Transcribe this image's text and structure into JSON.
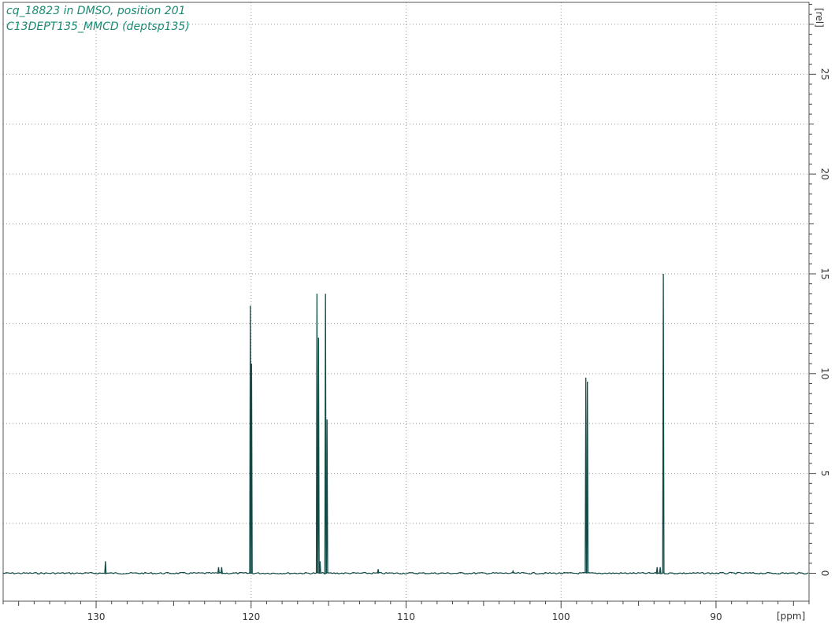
{
  "header": {
    "line1": "cq_18823 in DMSO, position 201",
    "line2": "C13DEPT135_MMCD (deptsp135)"
  },
  "colors": {
    "spectrum": "#0f4a45",
    "title": "#1a8a72",
    "grid": "#9a9a9a",
    "frame": "#555555"
  },
  "chart_data": {
    "type": "line",
    "title": "cq_18823 in DMSO, position 201",
    "subtitle": "C13DEPT135_MMCD (deptsp135)",
    "xlabel": "[ppm]",
    "ylabel": "[rel]",
    "x_reversed": true,
    "xlim": [
      136.0,
      84.0
    ],
    "ylim": [
      -1.4,
      28.6
    ],
    "x_ticks": [
      130,
      120,
      110,
      100,
      90
    ],
    "x_tick_labels": [
      "130",
      "120",
      "110",
      "100",
      "90"
    ],
    "y_ticks": [
      0,
      5,
      10,
      15,
      20,
      25
    ],
    "y_tick_labels": [
      "0",
      "5",
      "10",
      "15",
      "20",
      "25"
    ],
    "grid": true,
    "baseline": 0,
    "peaks": [
      {
        "ppm": 129.4,
        "height": 0.6
      },
      {
        "ppm": 122.1,
        "height": 0.3
      },
      {
        "ppm": 121.9,
        "height": 0.3
      },
      {
        "ppm": 120.05,
        "height": 13.4
      },
      {
        "ppm": 119.97,
        "height": 10.5
      },
      {
        "ppm": 115.75,
        "height": 14.0
      },
      {
        "ppm": 115.65,
        "height": 11.8
      },
      {
        "ppm": 115.55,
        "height": 0.6
      },
      {
        "ppm": 115.2,
        "height": 14.0
      },
      {
        "ppm": 115.1,
        "height": 7.7
      },
      {
        "ppm": 111.8,
        "height": 0.2
      },
      {
        "ppm": 103.1,
        "height": 0.1
      },
      {
        "ppm": 98.4,
        "height": 9.8
      },
      {
        "ppm": 98.3,
        "height": 9.6
      },
      {
        "ppm": 93.8,
        "height": 0.3
      },
      {
        "ppm": 93.6,
        "height": 0.3
      },
      {
        "ppm": 93.4,
        "height": 15.0
      }
    ]
  }
}
